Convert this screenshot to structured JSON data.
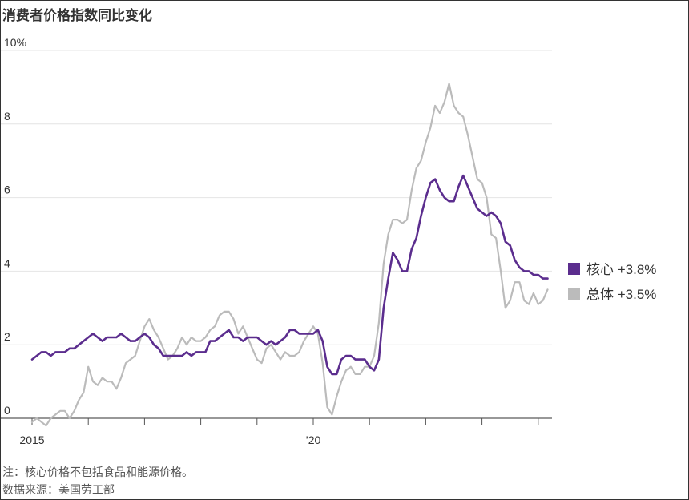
{
  "chart_data": {
    "type": "line",
    "title": "消费者价格指数同比变化",
    "ylim": [
      0,
      10
    ],
    "y_ticks": [
      {
        "value": 0,
        "label": "0"
      },
      {
        "value": 2,
        "label": "2"
      },
      {
        "value": 4,
        "label": "4"
      },
      {
        "value": 6,
        "label": "6"
      },
      {
        "value": 8,
        "label": "8"
      },
      {
        "value": 10,
        "label": "10%"
      }
    ],
    "x_start": "2015-01",
    "x_tick_labels": [
      {
        "year": 2015,
        "label": "2015"
      },
      {
        "year": 2020,
        "label": "’20"
      }
    ],
    "grid": "horizontal",
    "legend_placement": "right",
    "series": [
      {
        "name": "核心",
        "legend": "核心 +3.8%",
        "color": "#5b2d8e",
        "values": [
          1.6,
          1.7,
          1.8,
          1.8,
          1.7,
          1.8,
          1.8,
          1.8,
          1.9,
          1.9,
          2.0,
          2.1,
          2.2,
          2.3,
          2.2,
          2.1,
          2.2,
          2.2,
          2.2,
          2.3,
          2.2,
          2.1,
          2.1,
          2.2,
          2.3,
          2.2,
          2.0,
          1.9,
          1.7,
          1.7,
          1.7,
          1.7,
          1.7,
          1.8,
          1.7,
          1.8,
          1.8,
          1.8,
          2.1,
          2.1,
          2.2,
          2.3,
          2.4,
          2.2,
          2.2,
          2.1,
          2.2,
          2.2,
          2.2,
          2.1,
          2.0,
          2.1,
          2.0,
          2.1,
          2.2,
          2.4,
          2.4,
          2.3,
          2.3,
          2.3,
          2.3,
          2.4,
          2.1,
          1.4,
          1.2,
          1.2,
          1.6,
          1.7,
          1.7,
          1.6,
          1.6,
          1.6,
          1.4,
          1.3,
          1.6,
          3.0,
          3.8,
          4.5,
          4.3,
          4.0,
          4.0,
          4.6,
          4.9,
          5.5,
          6.0,
          6.4,
          6.5,
          6.2,
          6.0,
          5.9,
          5.9,
          6.3,
          6.6,
          6.3,
          6.0,
          5.7,
          5.6,
          5.5,
          5.6,
          5.5,
          5.3,
          4.8,
          4.7,
          4.3,
          4.1,
          4.0,
          4.0,
          3.9,
          3.9,
          3.8,
          3.8
        ]
      },
      {
        "name": "总体",
        "legend": "总体 +3.5%",
        "color": "#bbbbbb",
        "values": [
          -0.1,
          0.0,
          -0.1,
          -0.2,
          0.0,
          0.1,
          0.2,
          0.2,
          0.0,
          0.2,
          0.5,
          0.7,
          1.4,
          1.0,
          0.9,
          1.1,
          1.0,
          1.0,
          0.8,
          1.1,
          1.5,
          1.6,
          1.7,
          2.1,
          2.5,
          2.7,
          2.4,
          2.2,
          1.9,
          1.6,
          1.7,
          1.9,
          2.2,
          2.0,
          2.2,
          2.1,
          2.1,
          2.2,
          2.4,
          2.5,
          2.8,
          2.9,
          2.9,
          2.7,
          2.3,
          2.5,
          2.2,
          1.9,
          1.6,
          1.5,
          1.9,
          2.0,
          1.8,
          1.6,
          1.8,
          1.7,
          1.7,
          1.8,
          2.1,
          2.3,
          2.5,
          2.3,
          1.5,
          0.3,
          0.1,
          0.6,
          1.0,
          1.3,
          1.4,
          1.2,
          1.2,
          1.4,
          1.4,
          1.7,
          2.6,
          4.2,
          5.0,
          5.4,
          5.4,
          5.3,
          5.4,
          6.2,
          6.8,
          7.0,
          7.5,
          7.9,
          8.5,
          8.3,
          8.6,
          9.1,
          8.5,
          8.3,
          8.2,
          7.7,
          7.1,
          6.5,
          6.4,
          6.0,
          5.0,
          4.9,
          4.0,
          3.0,
          3.2,
          3.7,
          3.7,
          3.2,
          3.1,
          3.4,
          3.1,
          3.2,
          3.5
        ]
      }
    ]
  },
  "footer": {
    "note": "注：核心价格不包括食品和能源价格。",
    "source": "数据来源：美国劳工部"
  }
}
